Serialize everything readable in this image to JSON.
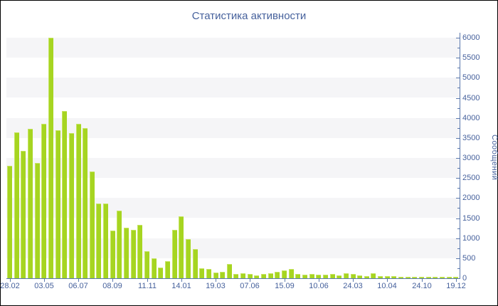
{
  "title": "Статистика активности",
  "colors": {
    "bar_fill": "#a6d521",
    "bar_edge": "#c6e462",
    "text_blue": "#46619c",
    "axis_line": "#5b79ad",
    "band_gray": "#f5f5f7",
    "frame_border": "#000000",
    "background": "#ffffff"
  },
  "chart_data": {
    "type": "bar",
    "title": "Статистика активности",
    "ylabel": "Сообщений",
    "xlabel": "",
    "ylim": [
      0,
      6000
    ],
    "y_tick_step": 500,
    "y_minor_tick_step": 250,
    "y_axis_side": "right",
    "grid": "alternating horizontal bands every 500, shaded ranges 500-1000, 1500-2000, 2500-3000, 3500-4000, 4500-5000, 5500-6000",
    "legend": "none",
    "bars_per_x_tick": 5,
    "x_tick_labels": [
      "28.02",
      "03.05",
      "06.07",
      "08.09",
      "11.11",
      "14.01",
      "19.03",
      "07.06",
      "15.09",
      "10.06",
      "24.03",
      "10.04",
      "24.10",
      "19.12"
    ],
    "y_tick_labels": [
      "0",
      "500",
      "1000",
      "1500",
      "2000",
      "2500",
      "3000",
      "3500",
      "4000",
      "4500",
      "5000",
      "5500",
      "6000"
    ],
    "values": [
      2800,
      3640,
      3170,
      3720,
      2870,
      3860,
      6000,
      3700,
      4170,
      3630,
      3850,
      3750,
      2670,
      1860,
      1860,
      1190,
      1690,
      1260,
      1210,
      1330,
      680,
      500,
      265,
      430,
      1200,
      1550,
      970,
      730,
      240,
      225,
      140,
      160,
      355,
      100,
      125,
      105,
      75,
      100,
      130,
      155,
      190,
      225,
      110,
      90,
      100,
      90,
      95,
      100,
      75,
      125,
      105,
      70,
      60,
      130,
      55,
      50,
      45,
      40,
      35,
      40,
      35,
      30,
      35,
      30,
      35,
      30
    ]
  }
}
